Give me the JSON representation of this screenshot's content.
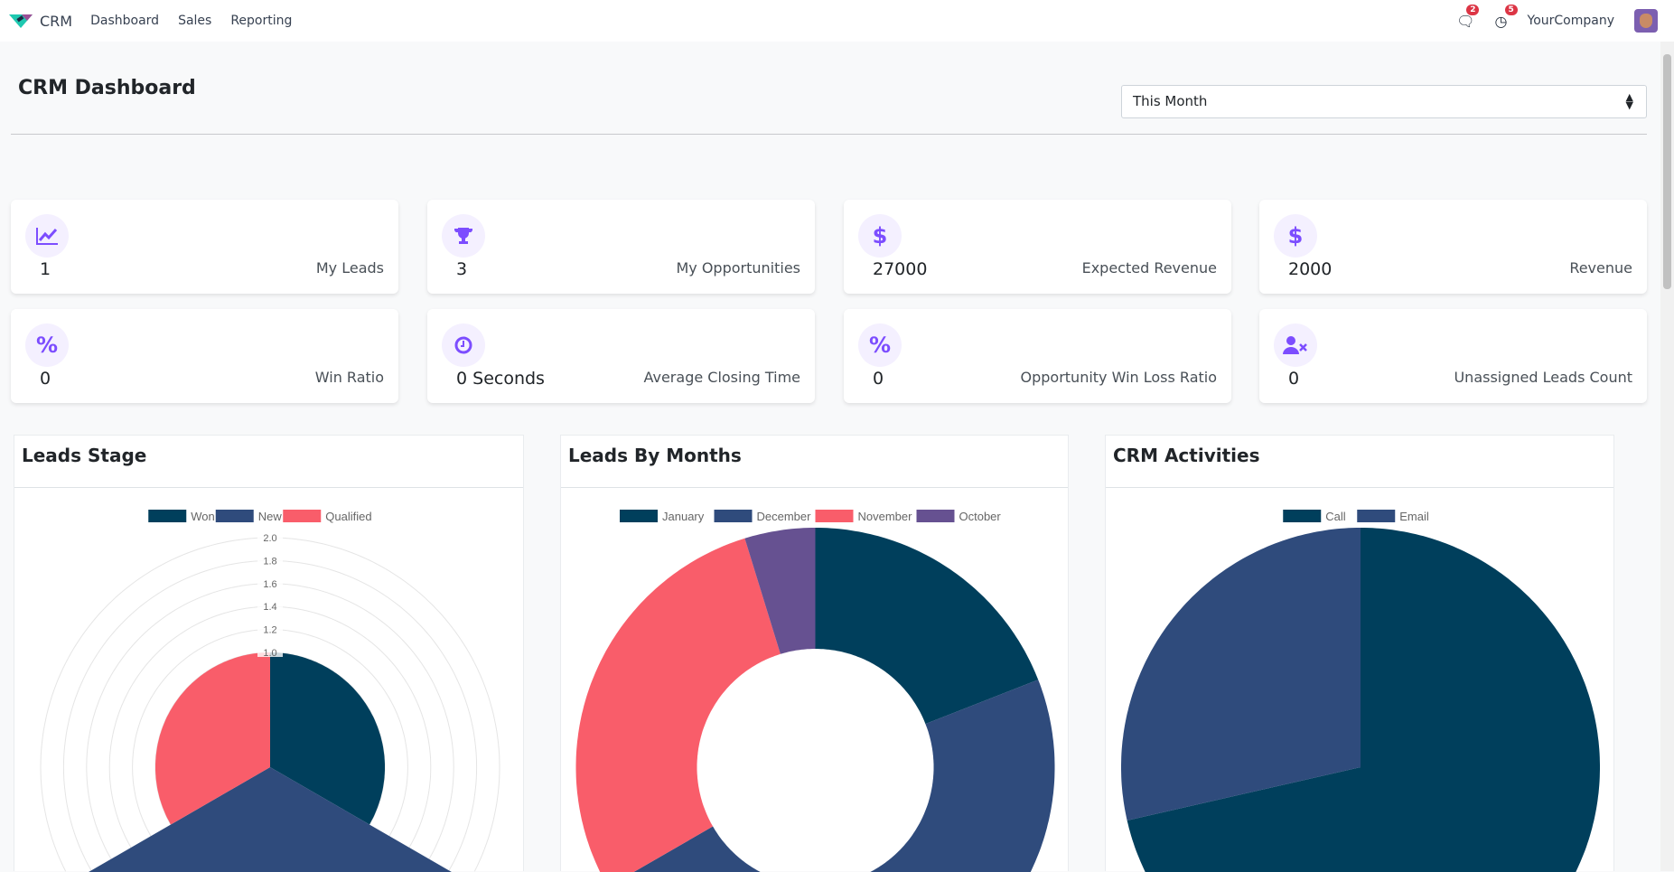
{
  "nav": {
    "app": "CRM",
    "menu": [
      "Dashboard",
      "Sales",
      "Reporting"
    ],
    "messages_count": "2",
    "activities_count": "5",
    "company": "YourCompany",
    "icons": [
      "chat-icon",
      "clock-icon"
    ]
  },
  "header": {
    "title": "CRM Dashboard",
    "period": "This Month"
  },
  "cards": [
    {
      "icon": "chart-line-icon",
      "value": "1",
      "label": "My Leads"
    },
    {
      "icon": "trophy-icon",
      "value": "3",
      "label": "My Opportunities"
    },
    {
      "icon": "dollar-icon",
      "value": "27000",
      "label": "Expected Revenue"
    },
    {
      "icon": "dollar-icon",
      "value": "2000",
      "label": "Revenue"
    },
    {
      "icon": "percent-icon",
      "value": "0",
      "label": "Win Ratio"
    },
    {
      "icon": "clock-icon",
      "value": "0 Seconds",
      "label": "Average Closing Time"
    },
    {
      "icon": "percent-icon",
      "value": "0",
      "label": "Opportunity Win Loss Ratio"
    },
    {
      "icon": "user-times-icon",
      "value": "0",
      "label": "Unassigned Leads Count"
    }
  ],
  "colors": {
    "accent": "#7c4dff",
    "c1": "#003f5c",
    "c2": "#2f4b7c",
    "c3": "#f95d6a",
    "c4": "#665191"
  },
  "chart_data": [
    {
      "type": "polarArea",
      "title": "Leads Stage",
      "categories": [
        "Won",
        "New",
        "Qualified"
      ],
      "values": [
        1,
        2,
        1
      ],
      "colors": [
        "#003f5c",
        "#2f4b7c",
        "#f95d6a"
      ],
      "rlim": [
        0,
        2
      ],
      "ticks": [
        "1.0",
        "1.2",
        "1.4",
        "1.6",
        "1.8",
        "2.0"
      ],
      "legend": "top"
    },
    {
      "type": "doughnut",
      "title": "Leads By Months",
      "categories": [
        "January",
        "December",
        "November",
        "October"
      ],
      "values": [
        4,
        10,
        6,
        1
      ],
      "colors": [
        "#003f5c",
        "#2f4b7c",
        "#f95d6a",
        "#665191"
      ],
      "legend": "top"
    },
    {
      "type": "pie",
      "title": "CRM Activities",
      "categories": [
        "Call",
        "Email"
      ],
      "values": [
        5,
        2
      ],
      "colors": [
        "#003f5c",
        "#2f4b7c"
      ],
      "legend": "top"
    }
  ]
}
